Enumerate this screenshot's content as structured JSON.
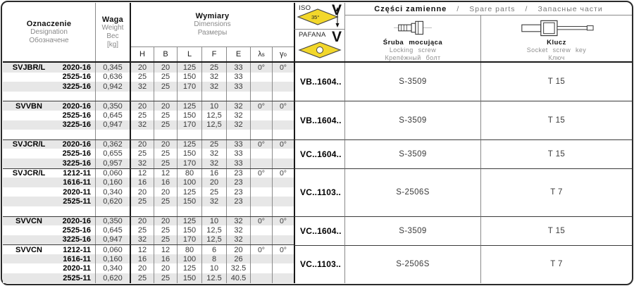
{
  "header": {
    "designation": {
      "pl": "Oznaczenie",
      "en": "Designation",
      "ru": "Обозначене"
    },
    "weight": {
      "pl": "Waga",
      "en": "Weight",
      "ru": "Вес",
      "unit": "[kg]"
    },
    "dimensions": {
      "pl": "Wymiary",
      "en": "Dimensions",
      "ru": "Размеры"
    },
    "dim_columns": [
      "H",
      "B",
      "L",
      "F",
      "E"
    ],
    "lambda": {
      "base": "λ",
      "sub": "s"
    },
    "gamma": {
      "base": "γ",
      "sub": "o"
    }
  },
  "iso_box": {
    "label": "ISO",
    "letter": "V",
    "angle": "35°"
  },
  "pafana_box": {
    "label": "PAFANA",
    "letter": "V"
  },
  "spare_parts": {
    "title": {
      "pl": "Części zamienne",
      "sep1": "/",
      "en": "Spare parts",
      "sep2": "/",
      "ru": "Запасные части"
    },
    "screw": {
      "pl": "Śruba mocująca",
      "en": "Locking screw",
      "ru": "Крепёжный болт"
    },
    "key": {
      "pl": "Klucz",
      "en": "Socket screw key",
      "ru": "Ключ"
    }
  },
  "colors": {
    "stripe": "#e7e7e7",
    "insert_yellow": "#f2d72b",
    "line_major": "#1a1a1a",
    "line_minor": "#8a8a8a"
  },
  "groups": [
    {
      "name": "SVJBR/L",
      "insert": "VB..1604..",
      "screw": "S-3509",
      "key": "T 15",
      "spacer": true,
      "rows": [
        {
          "size": "2020-16",
          "weight": "0,345",
          "h": "20",
          "b": "20",
          "l": "125",
          "f": "25",
          "e": "33",
          "ls": "0°",
          "go": "0°"
        },
        {
          "size": "2525-16",
          "weight": "0,636",
          "h": "25",
          "b": "25",
          "l": "150",
          "f": "32",
          "e": "33",
          "ls": "",
          "go": ""
        },
        {
          "size": "3225-16",
          "weight": "0,942",
          "h": "32",
          "b": "25",
          "l": "170",
          "f": "32",
          "e": "33",
          "ls": "",
          "go": ""
        }
      ]
    },
    {
      "name": "SVVBN",
      "insert": "VB..1604..",
      "screw": "S-3509",
      "key": "T 15",
      "spacer": true,
      "rows": [
        {
          "size": "2020-16",
          "weight": "0,350",
          "h": "20",
          "b": "20",
          "l": "125",
          "f": "10",
          "e": "32",
          "ls": "0°",
          "go": "0°"
        },
        {
          "size": "2525-16",
          "weight": "0,645",
          "h": "25",
          "b": "25",
          "l": "150",
          "f": "12,5",
          "e": "32",
          "ls": "",
          "go": ""
        },
        {
          "size": "3225-16",
          "weight": "0,947",
          "h": "32",
          "b": "25",
          "l": "170",
          "f": "12,5",
          "e": "32",
          "ls": "",
          "go": ""
        }
      ]
    },
    {
      "name": "SVJCR/L",
      "insert": "VC..1604..",
      "screw": "S-3509",
      "key": "T 15",
      "spacer": false,
      "rows": [
        {
          "size": "2020-16",
          "weight": "0,362",
          "h": "20",
          "b": "20",
          "l": "125",
          "f": "25",
          "e": "33",
          "ls": "0°",
          "go": "0°"
        },
        {
          "size": "2525-16",
          "weight": "0,655",
          "h": "25",
          "b": "25",
          "l": "150",
          "f": "32",
          "e": "33",
          "ls": "",
          "go": ""
        },
        {
          "size": "3225-16",
          "weight": "0,957",
          "h": "32",
          "b": "25",
          "l": "170",
          "f": "32",
          "e": "33",
          "ls": "",
          "go": ""
        }
      ]
    },
    {
      "name": "SVJCR/L",
      "insert": "VC..1103..",
      "screw": "S-2506S",
      "key": "T 7",
      "spacer": true,
      "rows": [
        {
          "size": "1212-11",
          "weight": "0,060",
          "h": "12",
          "b": "12",
          "l": "80",
          "f": "16",
          "e": "23",
          "ls": "0°",
          "go": "0°"
        },
        {
          "size": "1616-11",
          "weight": "0,160",
          "h": "16",
          "b": "16",
          "l": "100",
          "f": "20",
          "e": "23",
          "ls": "",
          "go": ""
        },
        {
          "size": "2020-11",
          "weight": "0,340",
          "h": "20",
          "b": "20",
          "l": "125",
          "f": "25",
          "e": "23",
          "ls": "",
          "go": ""
        },
        {
          "size": "2525-11",
          "weight": "0,620",
          "h": "25",
          "b": "25",
          "l": "150",
          "f": "32",
          "e": "23",
          "ls": "",
          "go": ""
        }
      ]
    },
    {
      "name": "SVVCN",
      "insert": "VC..1604..",
      "screw": "S-3509",
      "key": "T 15",
      "spacer": false,
      "rows": [
        {
          "size": "2020-16",
          "weight": "0,350",
          "h": "20",
          "b": "20",
          "l": "125",
          "f": "10",
          "e": "32",
          "ls": "0°",
          "go": "0°"
        },
        {
          "size": "2525-16",
          "weight": "0,645",
          "h": "25",
          "b": "25",
          "l": "150",
          "f": "12,5",
          "e": "32",
          "ls": "",
          "go": ""
        },
        {
          "size": "3225-16",
          "weight": "0,947",
          "h": "32",
          "b": "25",
          "l": "170",
          "f": "12,5",
          "e": "32",
          "ls": "",
          "go": ""
        }
      ]
    },
    {
      "name": "SVVCN",
      "insert": "VC..1103..",
      "screw": "S-2506S",
      "key": "T 7",
      "spacer": false,
      "rows": [
        {
          "size": "1212-11",
          "weight": "0,060",
          "h": "12",
          "b": "12",
          "l": "80",
          "f": "6",
          "e": "20",
          "ls": "0°",
          "go": "0°"
        },
        {
          "size": "1616-11",
          "weight": "0,160",
          "h": "16",
          "b": "16",
          "l": "100",
          "f": "8",
          "e": "26",
          "ls": "",
          "go": ""
        },
        {
          "size": "2020-11",
          "weight": "0,340",
          "h": "20",
          "b": "20",
          "l": "125",
          "f": "10",
          "e": "32.5",
          "ls": "",
          "go": ""
        },
        {
          "size": "2525-11",
          "weight": "0,620",
          "h": "25",
          "b": "25",
          "l": "150",
          "f": "12.5",
          "e": "40.5",
          "ls": "",
          "go": ""
        }
      ]
    }
  ]
}
